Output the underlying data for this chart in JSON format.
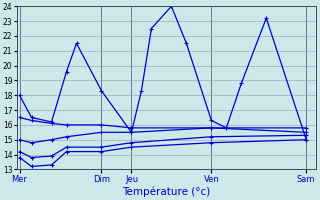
{
  "xlabel": "Température (°c)",
  "background_color": "#cce8e8",
  "grid_color": "#9999bb",
  "line_color": "#0000cc",
  "ylim": [
    13,
    24
  ],
  "xlim": [
    0,
    30
  ],
  "yticks": [
    13,
    14,
    15,
    16,
    17,
    18,
    19,
    20,
    21,
    22,
    23,
    24
  ],
  "x_day_labels": [
    "Mer",
    "Dim",
    "Jeu",
    "Ven",
    "Sam"
  ],
  "x_day_positions": [
    0.3,
    8.5,
    11.5,
    19.5,
    29.0
  ],
  "x_vlines": [
    0.3,
    8.5,
    11.5,
    19.5,
    29.0
  ],
  "series_main": {
    "x": [
      0.3,
      1.5,
      3.5,
      5.0,
      6.0,
      8.5,
      11.5,
      12.5,
      13.5,
      15.5,
      17.0,
      19.5,
      21.0,
      22.5,
      25.0,
      29.0
    ],
    "y": [
      18.0,
      16.5,
      16.2,
      19.6,
      21.5,
      18.3,
      15.5,
      18.3,
      22.5,
      24.0,
      21.5,
      16.3,
      15.8,
      18.8,
      23.2,
      15.0
    ]
  },
  "series_flat": [
    {
      "x": [
        0.3,
        1.5,
        3.5,
        5.0,
        8.5,
        11.5,
        19.5,
        29.0
      ],
      "y": [
        13.8,
        13.2,
        13.3,
        14.2,
        14.2,
        14.5,
        14.8,
        15.0
      ]
    },
    {
      "x": [
        0.3,
        1.5,
        3.5,
        5.0,
        8.5,
        11.5,
        19.5,
        29.0
      ],
      "y": [
        14.2,
        13.8,
        13.9,
        14.5,
        14.5,
        14.8,
        15.2,
        15.3
      ]
    },
    {
      "x": [
        0.3,
        1.5,
        3.5,
        5.0,
        8.5,
        11.5,
        19.5,
        29.0
      ],
      "y": [
        15.0,
        14.8,
        15.0,
        15.2,
        15.5,
        15.5,
        15.8,
        15.8
      ]
    },
    {
      "x": [
        0.3,
        1.5,
        3.5,
        5.0,
        8.5,
        11.5,
        19.5,
        29.0
      ],
      "y": [
        16.5,
        16.3,
        16.1,
        16.0,
        16.0,
        15.8,
        15.8,
        15.5
      ]
    }
  ]
}
